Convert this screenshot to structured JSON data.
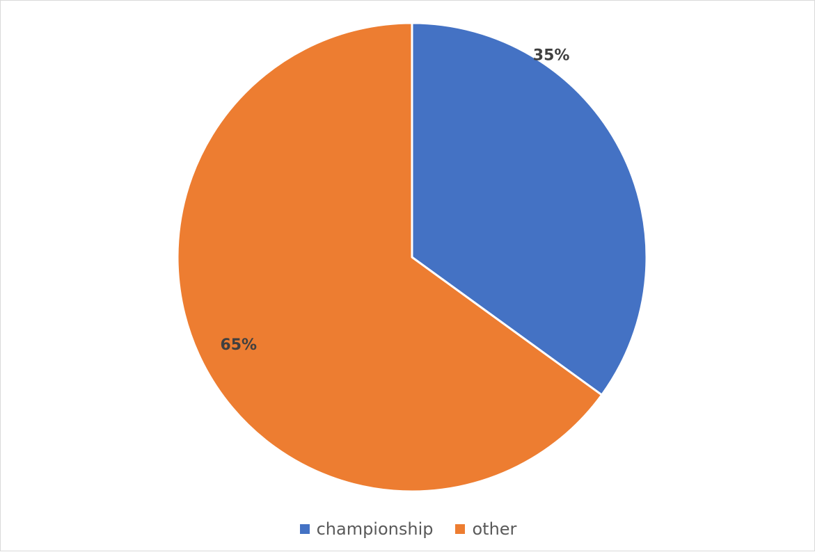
{
  "chart_data": {
    "type": "pie",
    "categories": [
      "championship",
      "other"
    ],
    "values": [
      35,
      65
    ],
    "labels": [
      "35%",
      "65%"
    ],
    "colors": [
      "#4472C4",
      "#ED7D31"
    ],
    "legend_position": "bottom",
    "start_angle": "top, clockwise"
  },
  "legend": {
    "items": [
      {
        "label": "championship",
        "color": "#4472C4"
      },
      {
        "label": "other",
        "color": "#ED7D31"
      }
    ]
  }
}
